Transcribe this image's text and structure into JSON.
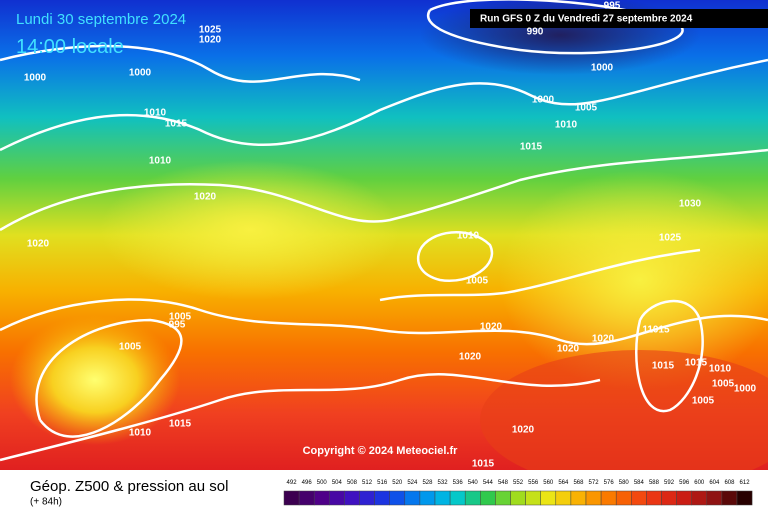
{
  "header": {
    "date": "Lundi 30 septembre 2024",
    "time": "14:00 locale",
    "run": "Run GFS 0 Z du Vendredi 27 septembre 2024"
  },
  "copyright": "Copyright © 2024 Meteociel.fr",
  "footer": {
    "title": "Géop. Z500 & pression au sol",
    "lead": "(+ 84h)"
  },
  "isobar_labels": [
    "1025",
    "1020",
    "1000",
    "1000",
    "995",
    "990",
    "1000",
    "1000",
    "1005",
    "1010",
    "1015",
    "1010",
    "1015",
    "1010",
    "1020",
    "1030",
    "1020",
    "1010",
    "1025",
    "1005",
    "1020",
    "11015",
    "1005",
    "995",
    "1005",
    "1020",
    "1020",
    "1020",
    "1015",
    "1015",
    "1010",
    "1005",
    "1000",
    "1005",
    "1010",
    "1015",
    "1020",
    "1015"
  ],
  "legend": {
    "values": [
      492,
      496,
      500,
      504,
      508,
      512,
      516,
      520,
      524,
      528,
      532,
      536,
      540,
      544,
      548,
      552,
      556,
      560,
      564,
      568,
      572,
      576,
      580,
      584,
      588,
      592,
      596,
      600,
      604,
      608,
      612
    ]
  }
}
